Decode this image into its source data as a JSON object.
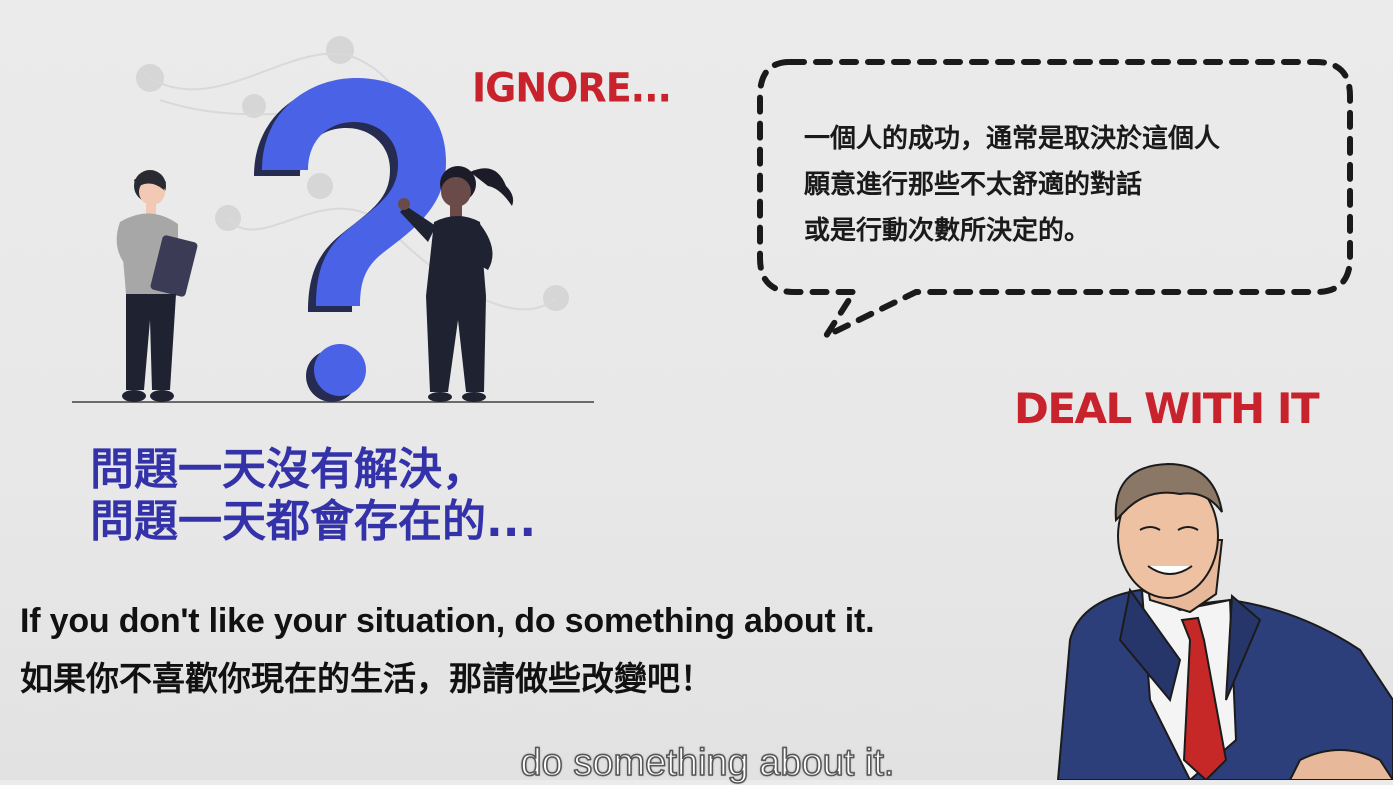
{
  "colors": {
    "accent_red": "#c8232c",
    "accent_blue": "#3432a8",
    "question_blue": "#4a63e6"
  },
  "labels": {
    "ignore": "IGNORE...",
    "deal": "DEAL WITH IT"
  },
  "speech_bubble": {
    "lines": [
      "一個人的成功，通常是取決於這個人",
      "願意進行那些不太舒適的對話",
      "或是行動次數所決定的。"
    ]
  },
  "problem_text": {
    "line1": "問題一天沒有解決，",
    "line2": "問題一天都會存在的..."
  },
  "quote": {
    "en": "If you don't like your situation, do something about it.",
    "zh": "如果你不喜歡你現在的生活，那請做些改變吧！"
  },
  "subtitle": "do something about it.",
  "icons": [
    "question-mark-icon",
    "man-with-tablet-figure",
    "woman-figure",
    "businessman-illustration",
    "speech-bubble-outline"
  ]
}
